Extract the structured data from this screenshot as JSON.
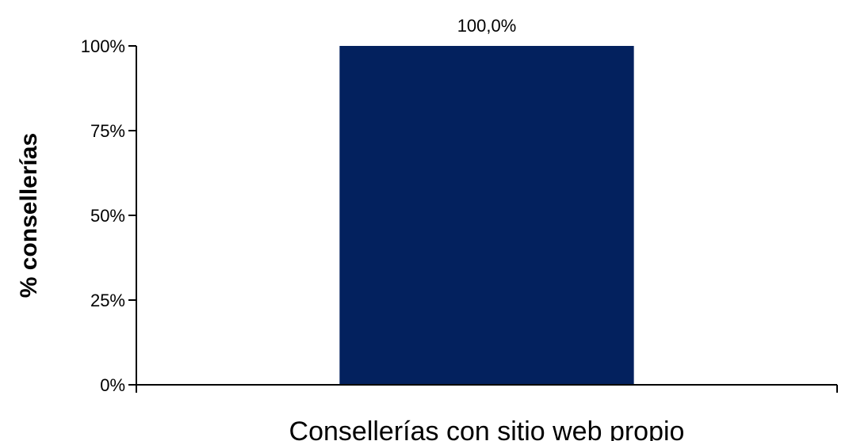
{
  "chart_data": {
    "type": "bar",
    "categories": [
      "Consellerías con sitio web propio"
    ],
    "values": [
      100.0
    ],
    "data_labels": [
      "100,0%"
    ],
    "title": "",
    "xlabel": "",
    "ylabel": "% consellerías",
    "ylim": [
      0,
      100
    ],
    "yticks": [
      0,
      25,
      50,
      75,
      100
    ],
    "ytick_labels": [
      "0%",
      "25%",
      "50%",
      "75%",
      "100%"
    ],
    "grid": false,
    "legend": "none",
    "colors": {
      "bar": "#03215E",
      "axis": "#000000",
      "text": "#000000"
    }
  }
}
